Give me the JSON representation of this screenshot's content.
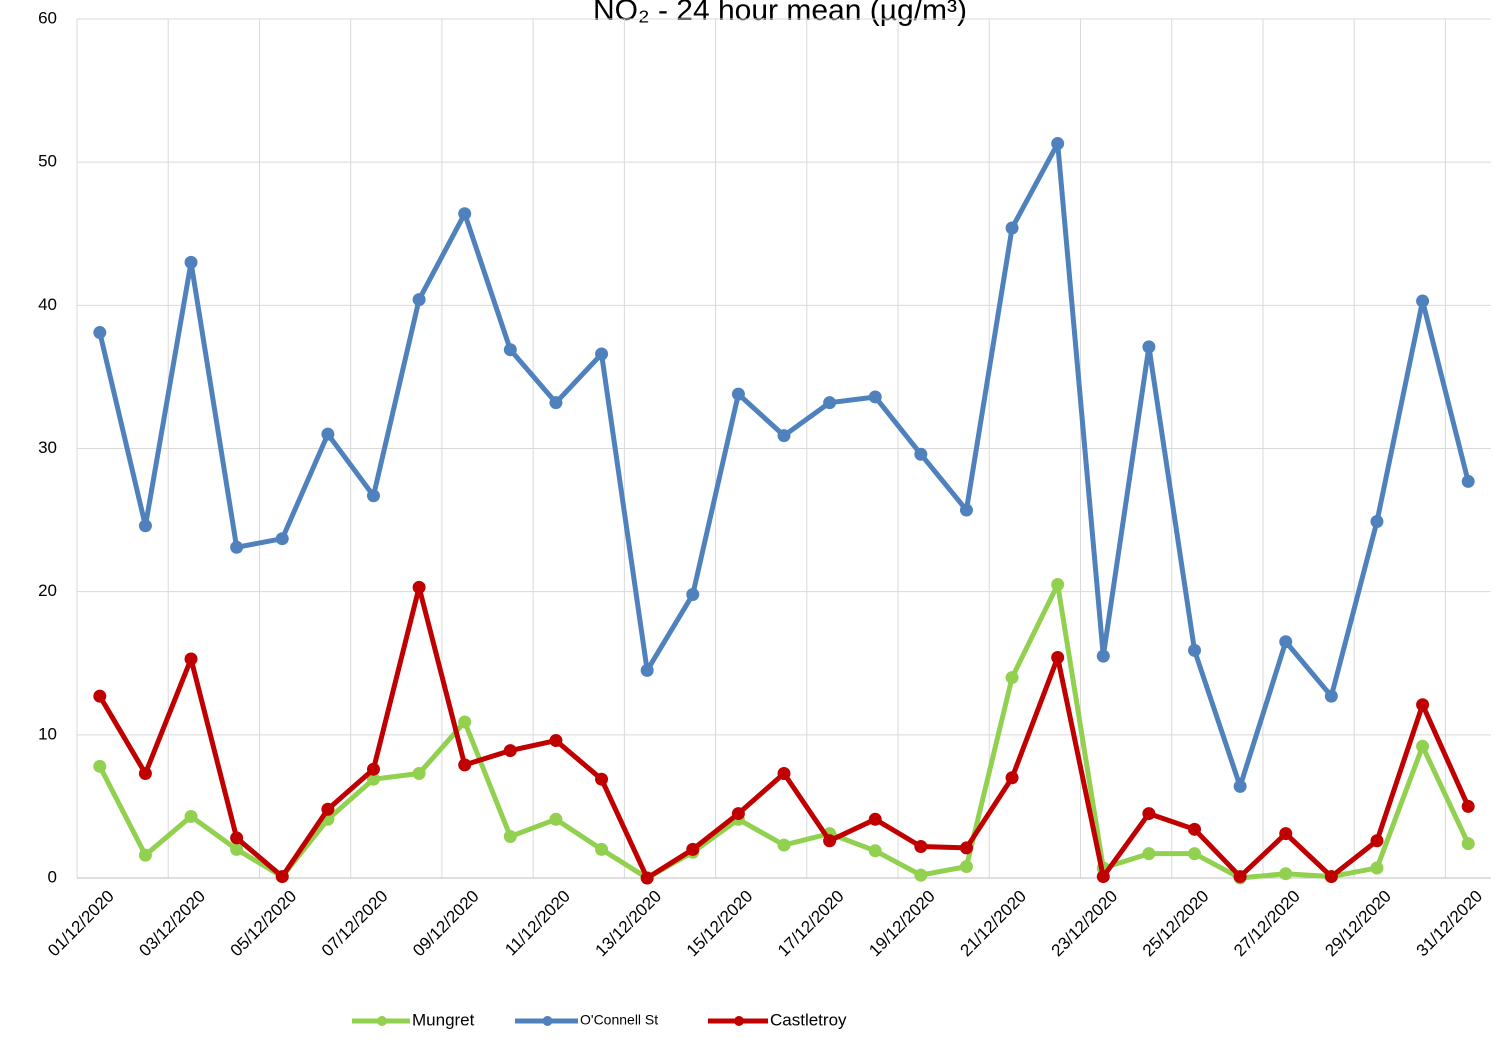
{
  "chart_data": {
    "type": "line",
    "title": "NO₂ - 24 hour mean (µg/m³)",
    "categories": [
      "01/12/2020",
      null,
      "03/12/2020",
      null,
      "05/12/2020",
      null,
      "07/12/2020",
      null,
      "09/12/2020",
      null,
      "11/12/2020",
      null,
      "13/12/2020",
      null,
      "15/12/2020",
      null,
      "17/12/2020",
      null,
      "19/12/2020",
      null,
      "21/12/2020",
      null,
      "23/12/2020",
      null,
      "25/12/2020",
      null,
      "27/12/2020",
      null,
      "29/12/2020",
      null,
      "31/12/2020"
    ],
    "series": [
      {
        "name": "Mungret",
        "color": "#92d050",
        "values": [
          7.8,
          1.6,
          4.3,
          2.0,
          0.1,
          4.1,
          6.9,
          7.3,
          10.9,
          2.9,
          4.1,
          2.0,
          0.0,
          1.8,
          4.1,
          2.3,
          3.1,
          1.9,
          0.2,
          0.8,
          14.0,
          20.5,
          0.7,
          1.7,
          1.7,
          0.0,
          0.3,
          0.1,
          0.7,
          9.2,
          2.4
        ]
      },
      {
        "name": "O'Connell St",
        "color": "#4f81bd",
        "values": [
          38.1,
          24.6,
          43.0,
          23.1,
          23.7,
          31.0,
          26.7,
          40.4,
          46.4,
          36.9,
          33.2,
          36.6,
          14.5,
          19.8,
          33.8,
          30.9,
          33.2,
          33.6,
          29.6,
          25.7,
          45.4,
          51.3,
          15.5,
          37.1,
          15.9,
          6.4,
          16.5,
          12.7,
          24.9,
          40.3,
          27.7
        ]
      },
      {
        "name": "Castletroy",
        "color": "#c00000",
        "values": [
          12.7,
          7.3,
          15.3,
          2.8,
          0.1,
          4.8,
          7.6,
          20.3,
          7.9,
          8.9,
          9.6,
          6.9,
          0.0,
          2.0,
          4.5,
          7.3,
          2.6,
          4.1,
          2.2,
          2.1,
          7.0,
          15.4,
          0.1,
          4.5,
          3.4,
          0.1,
          3.1,
          0.1,
          2.6,
          12.1,
          5.0
        ]
      }
    ],
    "ylim": [
      0,
      60
    ],
    "yticks": [
      0,
      10,
      20,
      30,
      40,
      50,
      60
    ],
    "grid": true,
    "legend": "bottom"
  }
}
